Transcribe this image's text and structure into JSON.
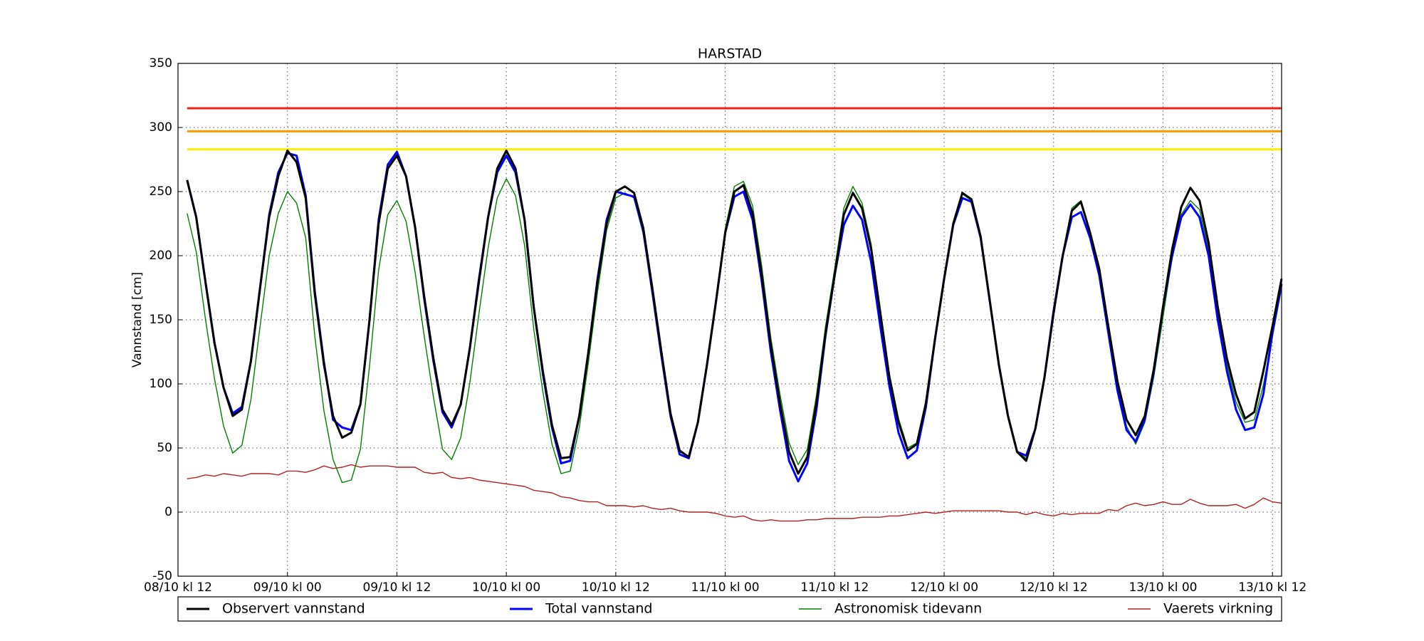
{
  "chart_data": {
    "type": "line",
    "title": "HARSTAD",
    "y_label": "Vannstand [cm]",
    "categories": [
      "08/10 kl 12",
      null,
      null,
      null,
      null,
      null,
      null,
      null,
      null,
      null,
      null,
      null,
      "09/10 kl 00",
      null,
      null,
      null,
      null,
      null,
      null,
      null,
      null,
      null,
      null,
      null,
      "09/10 kl 12",
      null,
      null,
      null,
      null,
      null,
      null,
      null,
      null,
      null,
      null,
      null,
      "10/10 kl 00",
      null,
      null,
      null,
      null,
      null,
      null,
      null,
      null,
      null,
      null,
      null,
      "10/10 kl 12",
      null,
      null,
      null,
      null,
      null,
      null,
      null,
      null,
      null,
      null,
      null,
      "11/10 kl 00",
      null,
      null,
      null,
      null,
      null,
      null,
      null,
      null,
      null,
      null,
      null,
      "11/10 kl 12",
      null,
      null,
      null,
      null,
      null,
      null,
      null,
      null,
      null,
      null,
      null,
      "12/10 kl 00",
      null,
      null,
      null,
      null,
      null,
      null,
      null,
      null,
      null,
      null,
      null,
      "12/10 kl 12",
      null,
      null,
      null,
      null,
      null,
      null,
      null,
      null,
      null,
      null,
      null,
      "13/10 kl 00",
      null,
      null,
      null,
      null,
      null,
      null,
      null,
      null,
      null,
      null,
      null,
      "13/10 kl 12",
      null
    ],
    "ylim": [
      -50,
      350
    ],
    "yticks": [
      -50,
      0,
      50,
      100,
      150,
      200,
      250,
      300,
      350
    ],
    "grid": true,
    "legend": "bottom",
    "reference_lines": [
      {
        "value": 315,
        "color": "#e8231c"
      },
      {
        "value": 297,
        "color": "#ff9900"
      },
      {
        "value": 283,
        "color": "#ffee00"
      }
    ],
    "series": [
      {
        "name": "Observert vannstand",
        "color": "#000000",
        "values": [
          null,
          259,
          230,
          180,
          132,
          97,
          75,
          80,
          118,
          175,
          230,
          262,
          282,
          273,
          245,
          170,
          115,
          75,
          58,
          62,
          84,
          150,
          225,
          268,
          278,
          262,
          222,
          168,
          120,
          80,
          68,
          84,
          128,
          180,
          230,
          268,
          282,
          268,
          228,
          160,
          110,
          68,
          42,
          43,
          75,
          125,
          180,
          225,
          250,
          254,
          249,
          222,
          175,
          125,
          77,
          48,
          43,
          70,
          115,
          165,
          218,
          250,
          255,
          233,
          185,
          130,
          85,
          47,
          30,
          43,
          85,
          140,
          185,
          232,
          249,
          237,
          205,
          155,
          105,
          70,
          48,
          53,
          85,
          135,
          182,
          225,
          249,
          244,
          215,
          165,
          115,
          75,
          47,
          40,
          65,
          105,
          155,
          200,
          235,
          242,
          218,
          190,
          145,
          102,
          72,
          60,
          75,
          112,
          160,
          205,
          238,
          253,
          243,
          210,
          160,
          120,
          92,
          73,
          78,
          110,
          145,
          182
        ]
      },
      {
        "name": "Total vannstand",
        "color": "#0000ff",
        "values": [
          null,
          259,
          230,
          180,
          132,
          97,
          77,
          82,
          118,
          175,
          232,
          265,
          280,
          278,
          247,
          172,
          117,
          72,
          66,
          64,
          84,
          150,
          228,
          271,
          281,
          262,
          222,
          166,
          118,
          78,
          66,
          84,
          128,
          182,
          230,
          265,
          278,
          265,
          228,
          160,
          108,
          66,
          38,
          40,
          75,
          125,
          182,
          228,
          250,
          248,
          246,
          220,
          172,
          122,
          75,
          45,
          42,
          70,
          115,
          165,
          218,
          246,
          250,
          228,
          180,
          125,
          80,
          40,
          24,
          38,
          80,
          138,
          185,
          224,
          239,
          228,
          195,
          145,
          98,
          62,
          42,
          48,
          82,
          135,
          182,
          224,
          245,
          242,
          214,
          165,
          115,
          75,
          47,
          44,
          65,
          105,
          157,
          200,
          230,
          234,
          214,
          185,
          140,
          95,
          64,
          55,
          72,
          110,
          160,
          200,
          230,
          240,
          230,
          200,
          150,
          110,
          80,
          64,
          66,
          92,
          140,
          178
        ]
      },
      {
        "name": "Astronomisk tidevann",
        "color": "#008000",
        "values": [
          null,
          233,
          203,
          151,
          104,
          67,
          46,
          52,
          88,
          145,
          200,
          233,
          250,
          241,
          214,
          137,
          79,
          41,
          23,
          25,
          49,
          114,
          189,
          232,
          243,
          227,
          187,
          137,
          90,
          49,
          41,
          58,
          101,
          155,
          206,
          245,
          260,
          247,
          208,
          143,
          94,
          53,
          30,
          32,
          66,
          117,
          172,
          220,
          245,
          249,
          245,
          217,
          172,
          123,
          74,
          47,
          43,
          70,
          115,
          166,
          221,
          254,
          258,
          239,
          192,
          136,
          92,
          54,
          37,
          49,
          91,
          145,
          190,
          237,
          254,
          241,
          209,
          159,
          108,
          73,
          50,
          54,
          85,
          136,
          182,
          224,
          248,
          243,
          214,
          164,
          114,
          75,
          47,
          42,
          65,
          107,
          158,
          201,
          237,
          243,
          219,
          191,
          143,
          101,
          67,
          53,
          70,
          106,
          152,
          199,
          232,
          243,
          236,
          205,
          155,
          115,
          86,
          70,
          72,
          99,
          137,
          175
        ]
      },
      {
        "name": "Vaerets virkning",
        "color": "#b22222",
        "values": [
          null,
          26,
          27,
          29,
          28,
          30,
          29,
          28,
          30,
          30,
          30,
          29,
          32,
          32,
          31,
          33,
          36,
          34,
          35,
          37,
          35,
          36,
          36,
          36,
          35,
          35,
          35,
          31,
          30,
          31,
          27,
          26,
          27,
          25,
          24,
          23,
          22,
          21,
          20,
          17,
          16,
          15,
          12,
          11,
          9,
          8,
          8,
          5,
          5,
          5,
          4,
          5,
          3,
          2,
          3,
          1,
          0,
          0,
          0,
          -1,
          -3,
          -4,
          -3,
          -6,
          -7,
          -6,
          -7,
          -7,
          -7,
          -6,
          -6,
          -5,
          -5,
          -5,
          -5,
          -4,
          -4,
          -4,
          -3,
          -3,
          -2,
          -1,
          0,
          -1,
          0,
          1,
          1,
          1,
          1,
          1,
          1,
          0,
          0,
          -2,
          0,
          -2,
          -3,
          -1,
          -2,
          -1,
          -1,
          -1,
          2,
          1,
          5,
          7,
          5,
          6,
          8,
          6,
          6,
          10,
          7,
          5,
          5,
          5,
          6,
          3,
          6,
          11,
          8,
          7
        ]
      }
    ]
  }
}
